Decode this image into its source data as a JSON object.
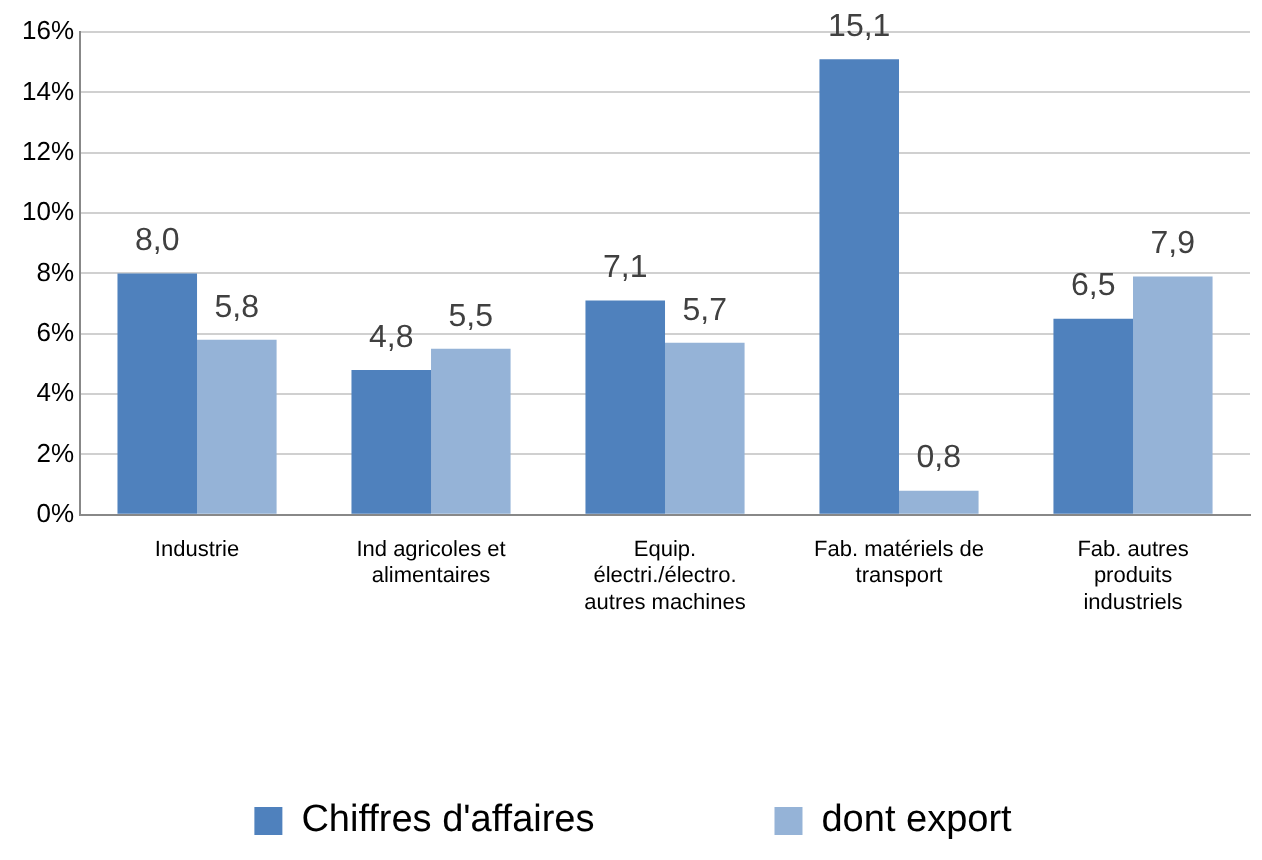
{
  "chart_data": {
    "type": "bar",
    "categories": [
      "Industrie",
      "Ind agricoles et alimentaires",
      "Equip. électri./électro. autres machines",
      "Fab. matériels de transport",
      "Fab. autres produits industriels"
    ],
    "series": [
      {
        "name": "Chiffres d'affaires",
        "color": "#4f81bd",
        "values": [
          8.0,
          4.8,
          7.1,
          15.1,
          6.5
        ],
        "value_labels": [
          "8,0",
          "4,8",
          "7,1",
          "15,1",
          "6,5"
        ]
      },
      {
        "name": "dont export",
        "color": "#95b3d7",
        "values": [
          5.8,
          5.5,
          5.7,
          0.8,
          7.9
        ],
        "value_labels": [
          "5,8",
          "5,5",
          "5,7",
          "0,8",
          "7,9"
        ]
      }
    ],
    "ylim": [
      0,
      16
    ],
    "yticks": [
      {
        "value": 0,
        "label": "0%"
      },
      {
        "value": 2,
        "label": "2%"
      },
      {
        "value": 4,
        "label": "4%"
      },
      {
        "value": 6,
        "label": "6%"
      },
      {
        "value": 8,
        "label": "8%"
      },
      {
        "value": 10,
        "label": "10%"
      },
      {
        "value": 12,
        "label": "12%"
      },
      {
        "value": 14,
        "label": "14%"
      },
      {
        "value": 16,
        "label": "16%"
      }
    ],
    "grid": "y",
    "legend": "bottom"
  }
}
